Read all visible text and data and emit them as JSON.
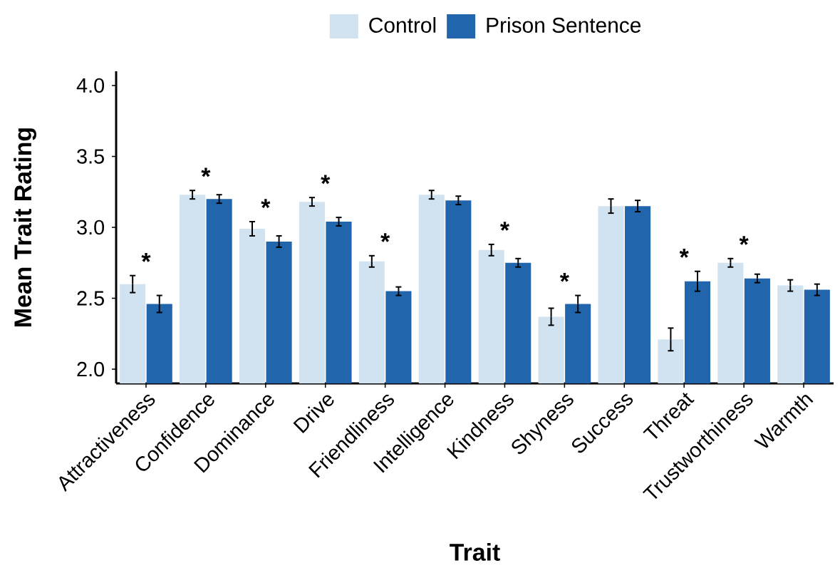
{
  "chart_data": {
    "type": "bar",
    "xlabel": "Trait",
    "ylabel": "Mean Trait Rating",
    "categories": [
      "Attractiveness",
      "Confidence",
      "Dominance",
      "Drive",
      "Friendliness",
      "Intelligence",
      "Kindness",
      "Shyness",
      "Success",
      "Threat",
      "Trustworthiness",
      "Warmth"
    ],
    "series": [
      {
        "name": "Control",
        "color": "#d1e3f0",
        "values": [
          2.6,
          3.23,
          2.99,
          3.18,
          2.76,
          3.23,
          2.84,
          2.37,
          3.15,
          2.21,
          2.75,
          2.59
        ],
        "errors": [
          0.06,
          0.03,
          0.05,
          0.03,
          0.04,
          0.03,
          0.04,
          0.06,
          0.05,
          0.08,
          0.03,
          0.04
        ]
      },
      {
        "name": "Prison Sentence",
        "color": "#2166ac",
        "values": [
          2.46,
          3.2,
          2.9,
          3.04,
          2.55,
          3.19,
          2.75,
          2.46,
          3.15,
          2.62,
          2.64,
          2.56
        ],
        "errors": [
          0.06,
          0.03,
          0.04,
          0.03,
          0.03,
          0.03,
          0.03,
          0.06,
          0.04,
          0.07,
          0.03,
          0.04
        ]
      }
    ],
    "ylim": [
      1.9,
      4.1
    ],
    "yticks": [
      {
        "value": 2,
        "label": "2.0"
      },
      {
        "value": 2.5,
        "label": "2.5"
      },
      {
        "value": 3,
        "label": "3.0"
      },
      {
        "value": 3.5,
        "label": "3.5"
      },
      {
        "value": 4,
        "label": "4.0"
      }
    ],
    "annotations": [
      {
        "text": "*",
        "x": "Attractiveness",
        "y": 2.6
      },
      {
        "text": "*",
        "x": "Confidence",
        "y": 3.23
      },
      {
        "text": "*",
        "x": "Dominance",
        "y": 2.99
      },
      {
        "text": "*",
        "x": "Drive",
        "y": 3.18
      },
      {
        "text": "*",
        "x": "Friendliness",
        "y": 2.76
      },
      {
        "text": "*",
        "x": "Kindness",
        "y": 2.84
      },
      {
        "text": "*",
        "x": "Shyness",
        "y": 2.46
      },
      {
        "text": "*",
        "x": "Threat",
        "y": 2.62
      },
      {
        "text": "*",
        "x": "Trustworthiness",
        "y": 2.75
      }
    ],
    "legend": "top",
    "grid": false
  }
}
